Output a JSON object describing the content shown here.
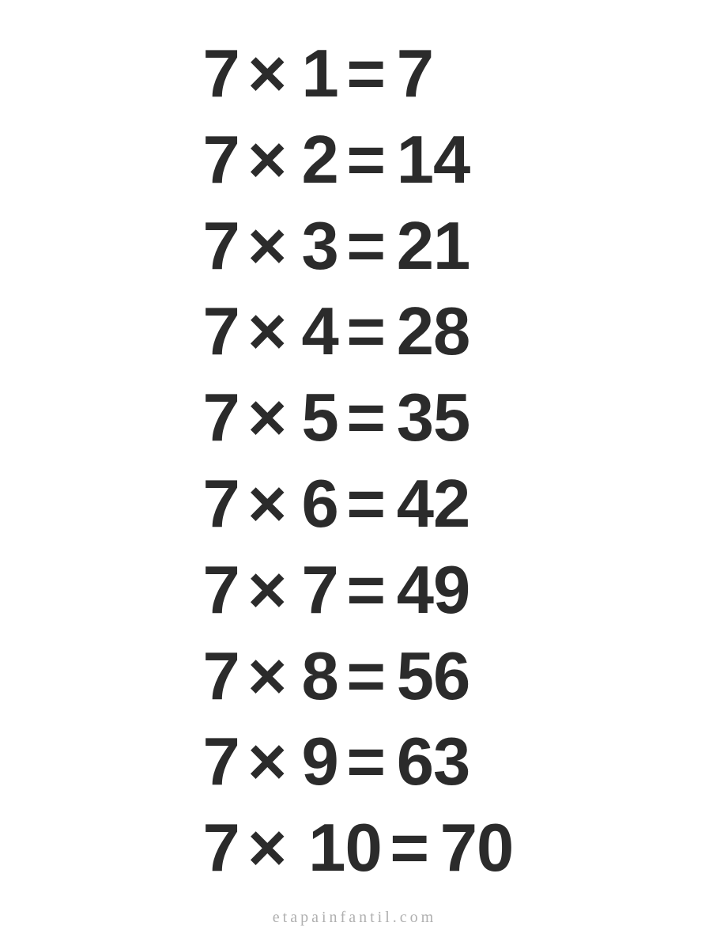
{
  "table": {
    "type": "table",
    "text_color": "#2b2b2b",
    "background_color": "#ffffff",
    "font_size_pt": 85,
    "font_weight": 900,
    "times_symbol": "×",
    "equals_symbol": "=",
    "rows": [
      {
        "multiplicand": "7",
        "multiplier": "1",
        "result": "7"
      },
      {
        "multiplicand": "7",
        "multiplier": "2",
        "result": "14"
      },
      {
        "multiplicand": "7",
        "multiplier": "3",
        "result": "21"
      },
      {
        "multiplicand": "7",
        "multiplier": "4",
        "result": "28"
      },
      {
        "multiplicand": "7",
        "multiplier": "5",
        "result": "35"
      },
      {
        "multiplicand": "7",
        "multiplier": "6",
        "result": "42"
      },
      {
        "multiplicand": "7",
        "multiplier": "7",
        "result": "49"
      },
      {
        "multiplicand": "7",
        "multiplier": "8",
        "result": "56"
      },
      {
        "multiplicand": "7",
        "multiplier": "9",
        "result": "63"
      },
      {
        "multiplicand": "7",
        "multiplier": "10",
        "result": "70"
      }
    ]
  },
  "footer": {
    "text": "etapainfantil.com",
    "color": "#b0b0b0",
    "font_size_pt": 20
  }
}
